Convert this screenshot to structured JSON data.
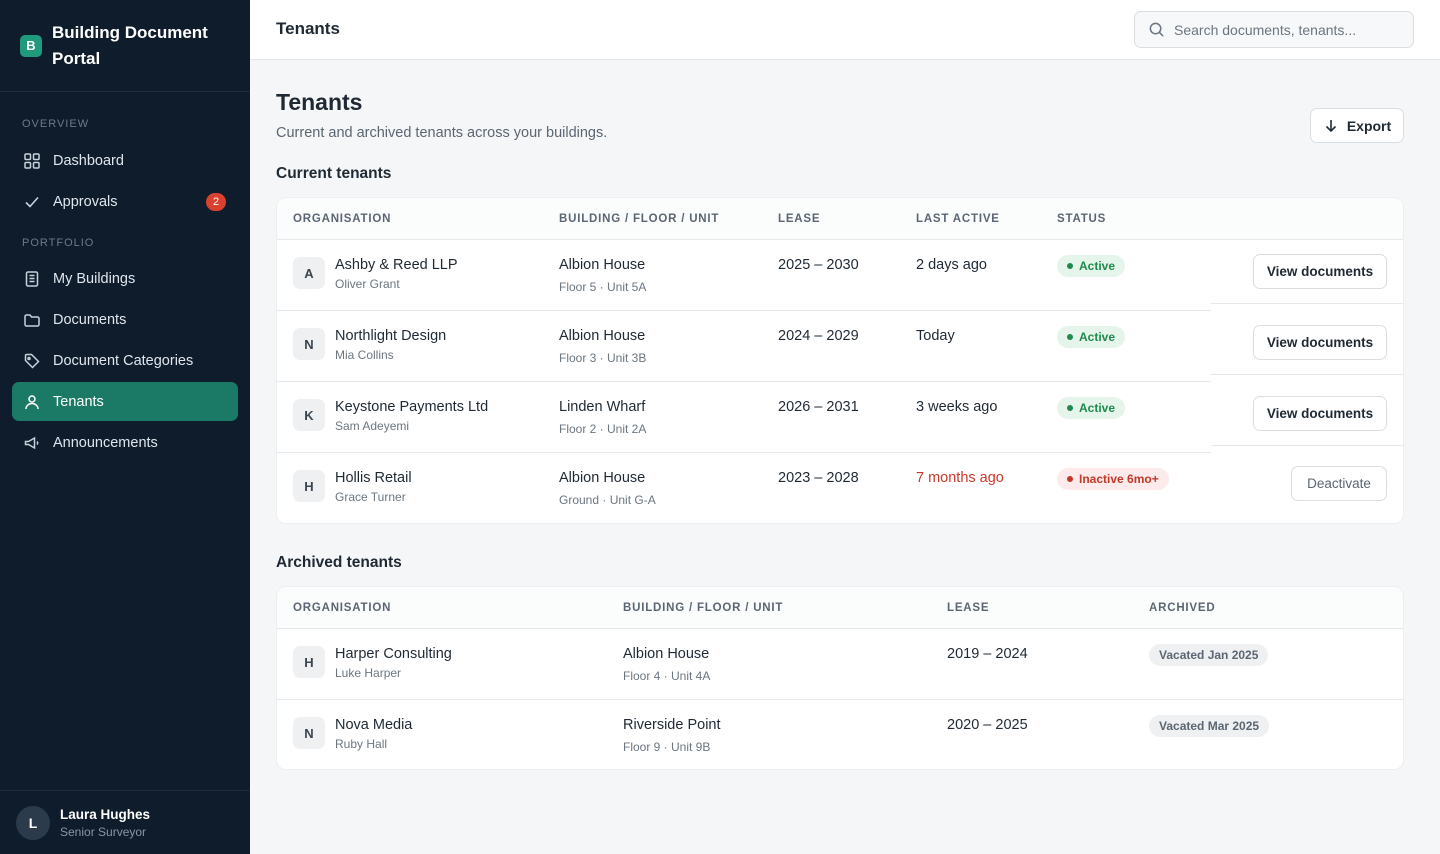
{
  "brand": {
    "logo_letter": "B",
    "name": "Building Document Portal"
  },
  "sidebar": {
    "sections": [
      "OVERVIEW",
      "PORTFOLIO"
    ],
    "items": [
      {
        "label": "Dashboard",
        "icon": "grid-icon"
      },
      {
        "label": "Approvals",
        "icon": "check-icon",
        "badge": "2"
      },
      {
        "label": "My Buildings",
        "icon": "building-icon"
      },
      {
        "label": "Documents",
        "icon": "folder-icon"
      },
      {
        "label": "Document Categories",
        "icon": "tag-icon"
      },
      {
        "label": "Tenants",
        "icon": "user-icon",
        "active": true
      },
      {
        "label": "Announcements",
        "icon": "megaphone-icon"
      }
    ]
  },
  "user": {
    "initial": "L",
    "name": "Laura Hughes",
    "role": "Senior Surveyor"
  },
  "topbar": {
    "title": "Tenants",
    "search_placeholder": "Search documents, tenants..."
  },
  "page": {
    "title": "Tenants",
    "subtitle": "Current and archived tenants across your buildings.",
    "export_label": "Export"
  },
  "current": {
    "title": "Current tenants",
    "headers": [
      "ORGANISATION",
      "BUILDING / FLOOR / UNIT",
      "LEASE",
      "LAST ACTIVE",
      "STATUS"
    ],
    "rows": [
      {
        "initial": "A",
        "org": "Ashby & Reed LLP",
        "contact": "Oliver Grant",
        "building": "Albion House",
        "unit": "Floor 5 · Unit 5A",
        "lease": "2025 – 2030",
        "last_active": "2 days ago",
        "status": "Active",
        "action": "View documents"
      },
      {
        "initial": "N",
        "org": "Northlight Design",
        "contact": "Mia Collins",
        "building": "Albion House",
        "unit": "Floor 3 · Unit 3B",
        "lease": "2024 – 2029",
        "last_active": "Today",
        "status": "Active",
        "action": "View documents"
      },
      {
        "initial": "K",
        "org": "Keystone Payments Ltd",
        "contact": "Sam Adeyemi",
        "building": "Linden Wharf",
        "unit": "Floor 2 · Unit 2A",
        "lease": "2026 – 2031",
        "last_active": "3 weeks ago",
        "status": "Active",
        "action": "View documents"
      },
      {
        "initial": "H",
        "org": "Hollis Retail",
        "contact": "Grace Turner",
        "building": "Albion House",
        "unit": "Ground · Unit G-A",
        "lease": "2023 – 2028",
        "last_active": "7 months ago",
        "status": "Inactive 6mo+",
        "action": "Deactivate"
      }
    ]
  },
  "archived": {
    "title": "Archived tenants",
    "headers": [
      "ORGANISATION",
      "BUILDING / FLOOR / UNIT",
      "LEASE",
      "ARCHIVED"
    ],
    "rows": [
      {
        "initial": "H",
        "org": "Harper Consulting",
        "contact": "Luke Harper",
        "building": "Albion House",
        "unit": "Floor 4 · Unit 4A",
        "lease": "2019 – 2024",
        "archived": "Vacated Jan 2025"
      },
      {
        "initial": "N",
        "org": "Nova Media",
        "contact": "Ruby Hall",
        "building": "Riverside Point",
        "unit": "Floor 9 · Unit 9B",
        "lease": "2020 – 2025",
        "archived": "Vacated Mar 2025"
      }
    ]
  },
  "colors": {
    "sidebar_bg": "#0f1c2b",
    "accent": "#1b7a66",
    "active_status": "#1e8a4c",
    "inactive_status": "#c0392b",
    "badge": "#d9412f"
  }
}
